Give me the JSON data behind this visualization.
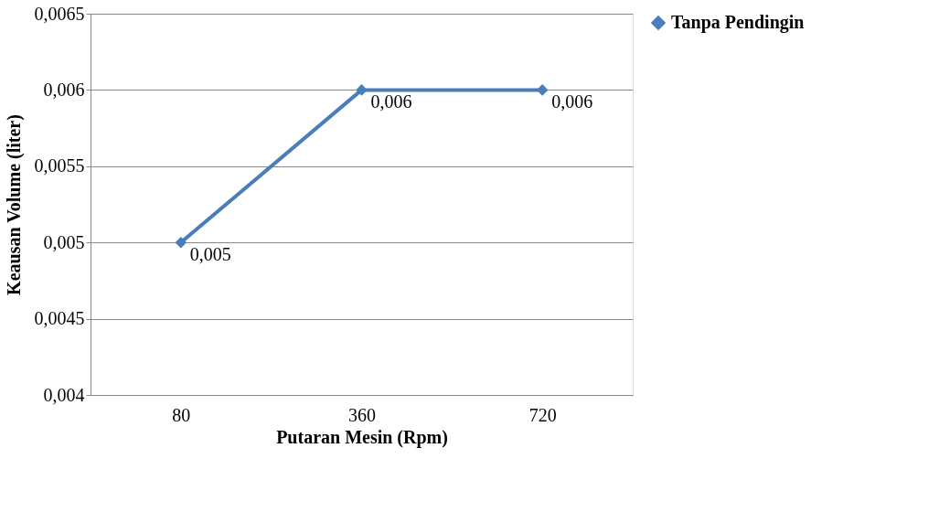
{
  "chart_data": {
    "type": "line",
    "xlabel": "Putaran Mesin (Rpm)",
    "ylabel": "Keausan Volume (liter)",
    "categories": [
      "80",
      "360",
      "720"
    ],
    "series": [
      {
        "name": "Tanpa Pendingin",
        "color": "#4a7ebb",
        "values": [
          0.005,
          0.006,
          0.006
        ],
        "value_labels": [
          "0,005",
          "0,006",
          "0,006"
        ]
      }
    ],
    "ylim": [
      0.004,
      0.0065
    ],
    "yticks": [
      {
        "value": 0.004,
        "label": "0,004"
      },
      {
        "value": 0.0045,
        "label": "0,0045"
      },
      {
        "value": 0.005,
        "label": "0,005"
      },
      {
        "value": 0.0055,
        "label": "0,0055"
      },
      {
        "value": 0.006,
        "label": "0,006"
      },
      {
        "value": 0.0065,
        "label": "0,0065"
      }
    ],
    "grid": "y",
    "legend": "right",
    "marker": "diamond",
    "line_style": "solid"
  }
}
